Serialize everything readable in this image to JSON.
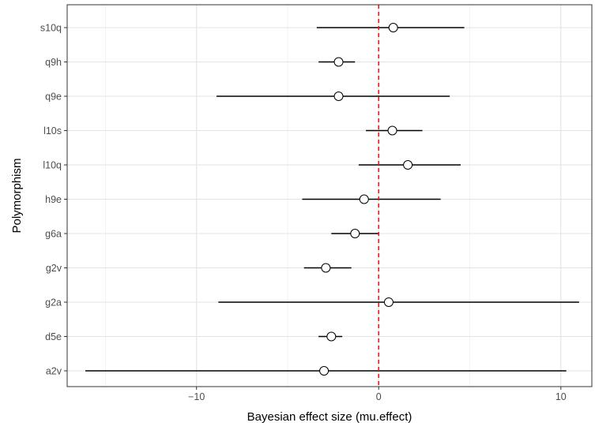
{
  "chart_data": {
    "type": "forest",
    "xlabel": "Bayesian effect size (mu.effect)",
    "ylabel": "Polymorphism",
    "xlim": [
      -17.1,
      11.7
    ],
    "x_ticks": [
      -10,
      0,
      10
    ],
    "x_tick_labels": [
      "−10",
      "0",
      "10"
    ],
    "reference_line": {
      "x": 0,
      "color": "#e31a1c",
      "style": "dashed"
    },
    "grid": true,
    "categories": [
      "s10q",
      "q9h",
      "q9e",
      "l10s",
      "l10q",
      "h9e",
      "g6a",
      "g2v",
      "g2a",
      "d5e",
      "a2v"
    ],
    "estimate": [
      0.8,
      -2.2,
      -2.2,
      0.75,
      1.6,
      -0.8,
      -1.3,
      -2.9,
      0.55,
      -2.6,
      -3.0
    ],
    "lower": [
      -3.4,
      -3.3,
      -8.9,
      -0.7,
      -1.1,
      -4.2,
      -2.6,
      -4.1,
      -8.8,
      -3.3,
      -16.1
    ],
    "upper": [
      4.7,
      -1.3,
      3.9,
      2.4,
      4.5,
      3.4,
      0.0,
      -1.5,
      11.0,
      -2.0,
      10.3
    ]
  }
}
